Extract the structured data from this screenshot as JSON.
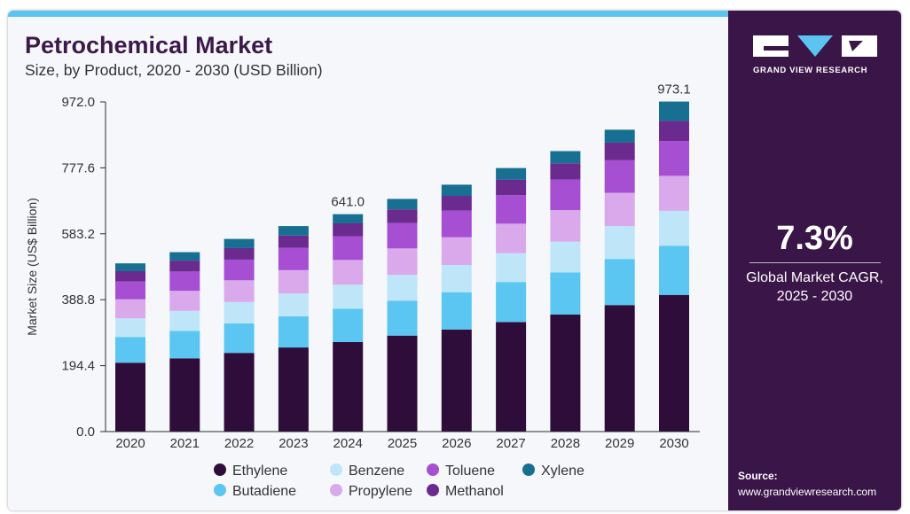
{
  "header": {
    "title": "Petrochemical Market",
    "subtitle": "Size, by Product, 2020 - 2030 (USD Billion)"
  },
  "colors": {
    "accent_bar": "#5bc4f1",
    "sidebar_bg": "#3a1548",
    "title": "#3b1a4a"
  },
  "chart_data": {
    "type": "bar",
    "stacked": true,
    "ylabel": "Market Size (US$ Billion)",
    "xlabel": "",
    "ylim": [
      0,
      972.0
    ],
    "y_ticks": [
      "0.0",
      "194.4",
      "388.8",
      "583.2",
      "777.6",
      "972.0"
    ],
    "grid": false,
    "legend_position": "bottom",
    "categories": [
      "2020",
      "2021",
      "2022",
      "2023",
      "2024",
      "2025",
      "2026",
      "2027",
      "2028",
      "2029",
      "2030"
    ],
    "series": [
      {
        "name": "Ethylene",
        "color": "#2e0d3a",
        "values": [
          203,
          216,
          232,
          248,
          264,
          283,
          301,
          323,
          345,
          373,
          403
        ]
      },
      {
        "name": "Butadiene",
        "color": "#5bc6f2",
        "values": [
          76,
          81,
          87,
          92,
          98,
          103,
          110,
          118,
          124,
          136,
          145
        ]
      },
      {
        "name": "Benzene",
        "color": "#bfe6f8",
        "values": [
          55,
          59,
          63,
          67,
          71,
          76,
          80,
          85,
          91,
          97,
          103
        ]
      },
      {
        "name": "Propylene",
        "color": "#d9a9ec",
        "values": [
          56,
          59,
          64,
          69,
          73,
          78,
          82,
          87,
          93,
          98,
          103
        ]
      },
      {
        "name": "Toluene",
        "color": "#a64fd3",
        "values": [
          53,
          57,
          61,
          66,
          70,
          75,
          79,
          84,
          90,
          96,
          103
        ]
      },
      {
        "name": "Methanol",
        "color": "#6a2a8e",
        "values": [
          30,
          32,
          34,
          36,
          38,
          40,
          43,
          46,
          48,
          52,
          59
        ]
      },
      {
        "name": "Xylene",
        "color": "#176f91",
        "values": [
          23,
          25,
          27,
          28,
          27,
          31,
          33,
          34,
          36,
          38,
          57.1
        ]
      }
    ],
    "annotations": [
      {
        "category": "2024",
        "label": "641.0"
      },
      {
        "category": "2030",
        "label": "973.1"
      }
    ]
  },
  "sidebar": {
    "brand": "GRAND VIEW RESEARCH",
    "cagr_value": "7.3%",
    "cagr_label_line1": "Global Market CAGR,",
    "cagr_label_line2": "2025 - 2030",
    "source_title": "Source:",
    "source_url": "www.grandviewresearch.com"
  }
}
